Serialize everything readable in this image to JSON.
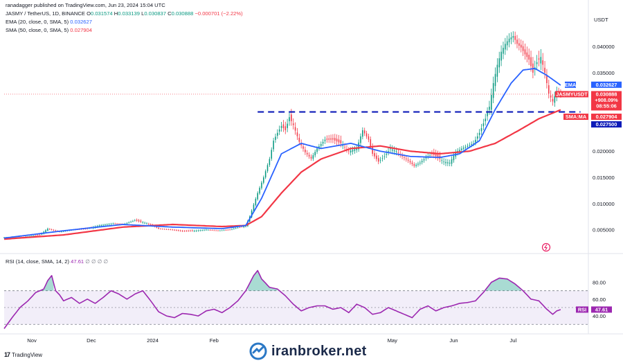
{
  "header": {
    "publisher": "ranadagger published on TradingView.com, Jun 23, 2024 15:04 UTC",
    "symbol_line": "JASMY / TetherUS, 1D, BINANCE",
    "o_label": "O",
    "o_value": "0.031574",
    "h_label": "H",
    "h_value": "0.033139",
    "l_label": "L",
    "l_value": "0.030837",
    "c_label": "C",
    "c_value": "0.030888",
    "change": "−0.000701 (−2.22%)",
    "ema_label": "EMA (20, close, 0, SMA, 5)",
    "ema_value": "0.032627",
    "sma_label": "SMA (50, close, 0, SMA, 5)",
    "sma_value": "0.027904"
  },
  "rsi_header": {
    "label": "RSI (14, close, SMA, 14, 2)",
    "value": "47.61",
    "extras": "∅ ∅ ∅ ∅"
  },
  "currency": "USDT",
  "tags": {
    "ema": {
      "label": "EMA",
      "value": "0.032627"
    },
    "symbol": {
      "label": "JASMYUSDT",
      "value": "0.030888",
      "change": "+908.09%",
      "countdown": "08:55:06"
    },
    "sma": {
      "label": "SMA:MA",
      "value": "0.027904"
    },
    "level": {
      "value": "0.027500"
    },
    "rsi": {
      "label": "RSI",
      "value": "47.61"
    }
  },
  "branding": {
    "tradingview": "TradingView",
    "watermark": "iranbroker.net"
  },
  "colors": {
    "up": "#089981",
    "down": "#f23645",
    "ema": "#2962ff",
    "sma": "#f23645",
    "rsi": "#9c27b0",
    "level_line": "#0d1bb8",
    "tag_dark": "#131722"
  },
  "chart_data": [
    {
      "type": "candlestick",
      "symbol": "JASMY / TetherUS",
      "timeframe": "1D",
      "y_axis": {
        "ticks": [
          0.005,
          0.01,
          0.015,
          0.02,
          0.035,
          0.04
        ],
        "tick_labels": [
          "0.005000",
          "0.010000",
          "0.015000",
          "0.020000",
          "0.035000",
          "0.040000"
        ],
        "ylim": [
          0.0015,
          0.0465
        ]
      },
      "x_axis": {
        "tick_labels": [
          "Nov",
          "Dec",
          "2024",
          "Feb",
          "May",
          "Jun",
          "Jul"
        ]
      },
      "close_series_approx": [
        [
          0,
          0.0035
        ],
        [
          10,
          0.0036
        ],
        [
          18,
          0.004
        ],
        [
          22,
          0.0052
        ],
        [
          28,
          0.0046
        ],
        [
          35,
          0.005
        ],
        [
          42,
          0.0052
        ],
        [
          48,
          0.0058
        ],
        [
          55,
          0.0062
        ],
        [
          60,
          0.006
        ],
        [
          66,
          0.0068
        ],
        [
          70,
          0.0064
        ],
        [
          74,
          0.006
        ],
        [
          78,
          0.0052
        ],
        [
          84,
          0.005
        ],
        [
          90,
          0.0047
        ],
        [
          96,
          0.0048
        ],
        [
          102,
          0.005
        ],
        [
          108,
          0.0048
        ],
        [
          114,
          0.005
        ],
        [
          118,
          0.0054
        ],
        [
          122,
          0.0058
        ],
        [
          124,
          0.0075
        ],
        [
          126,
          0.0098
        ],
        [
          128,
          0.012
        ],
        [
          131,
          0.015
        ],
        [
          134,
          0.0185
        ],
        [
          136,
          0.022
        ],
        [
          138,
          0.0235
        ],
        [
          140,
          0.0248
        ],
        [
          142,
          0.024
        ],
        [
          144,
          0.0265
        ],
        [
          146,
          0.025
        ],
        [
          149,
          0.0218
        ],
        [
          152,
          0.0198
        ],
        [
          155,
          0.0186
        ],
        [
          158,
          0.0205
        ],
        [
          162,
          0.0222
        ],
        [
          166,
          0.0222
        ],
        [
          170,
          0.0215
        ],
        [
          174,
          0.02
        ],
        [
          178,
          0.0205
        ],
        [
          181,
          0.024
        ],
        [
          184,
          0.0222
        ],
        [
          186,
          0.0195
        ],
        [
          189,
          0.018
        ],
        [
          192,
          0.019
        ],
        [
          195,
          0.0205
        ],
        [
          198,
          0.02
        ],
        [
          201,
          0.019
        ],
        [
          204,
          0.0182
        ],
        [
          207,
          0.0172
        ],
        [
          210,
          0.0178
        ],
        [
          213,
          0.0188
        ],
        [
          216,
          0.0195
        ],
        [
          219,
          0.0188
        ],
        [
          222,
          0.018
        ],
        [
          225,
          0.0178
        ],
        [
          228,
          0.0198
        ],
        [
          231,
          0.0205
        ],
        [
          234,
          0.021
        ],
        [
          237,
          0.0215
        ],
        [
          240,
          0.0235
        ],
        [
          243,
          0.0262
        ],
        [
          245,
          0.0285
        ],
        [
          247,
          0.033
        ],
        [
          249,
          0.0365
        ],
        [
          251,
          0.039
        ],
        [
          253,
          0.0405
        ],
        [
          255,
          0.0415
        ],
        [
          257,
          0.042
        ],
        [
          259,
          0.0405
        ],
        [
          261,
          0.0398
        ],
        [
          263,
          0.0385
        ],
        [
          265,
          0.0375
        ],
        [
          267,
          0.035
        ],
        [
          269,
          0.037
        ],
        [
          271,
          0.038
        ],
        [
          273,
          0.035
        ],
        [
          275,
          0.031
        ],
        [
          277,
          0.0295
        ],
        [
          279,
          0.0315
        ],
        [
          281,
          0.0309
        ]
      ],
      "ema20": [
        [
          0,
          0.0034
        ],
        [
          30,
          0.0048
        ],
        [
          60,
          0.006
        ],
        [
          85,
          0.0055
        ],
        [
          110,
          0.0052
        ],
        [
          122,
          0.0058
        ],
        [
          130,
          0.011
        ],
        [
          140,
          0.0195
        ],
        [
          150,
          0.0215
        ],
        [
          160,
          0.0205
        ],
        [
          175,
          0.0215
        ],
        [
          190,
          0.02
        ],
        [
          205,
          0.019
        ],
        [
          220,
          0.0188
        ],
        [
          230,
          0.0195
        ],
        [
          240,
          0.022
        ],
        [
          248,
          0.028
        ],
        [
          256,
          0.033
        ],
        [
          262,
          0.0355
        ],
        [
          268,
          0.0358
        ],
        [
          274,
          0.0345
        ],
        [
          281,
          0.0326
        ]
      ],
      "sma50": [
        [
          0,
          0.0032
        ],
        [
          30,
          0.004
        ],
        [
          60,
          0.0055
        ],
        [
          85,
          0.006
        ],
        [
          110,
          0.0056
        ],
        [
          122,
          0.0058
        ],
        [
          130,
          0.0075
        ],
        [
          140,
          0.012
        ],
        [
          150,
          0.016
        ],
        [
          160,
          0.0185
        ],
        [
          175,
          0.0205
        ],
        [
          190,
          0.021
        ],
        [
          205,
          0.02
        ],
        [
          220,
          0.0195
        ],
        [
          235,
          0.02
        ],
        [
          248,
          0.0215
        ],
        [
          260,
          0.024
        ],
        [
          270,
          0.0262
        ],
        [
          281,
          0.0279
        ]
      ],
      "horizontal_level": 0.0275
    },
    {
      "type": "line",
      "name": "RSI (14, close, SMA, 14, 2)",
      "y_axis": {
        "tick_labels": [
          "40.00",
          "60.00",
          "80.00"
        ],
        "ylim": [
          22,
          101
        ],
        "bands": [
          30,
          70
        ]
      },
      "rsi_series_approx": [
        [
          0,
          25
        ],
        [
          4,
          38
        ],
        [
          8,
          50
        ],
        [
          12,
          58
        ],
        [
          16,
          68
        ],
        [
          20,
          72
        ],
        [
          22,
          82
        ],
        [
          24,
          88
        ],
        [
          26,
          70
        ],
        [
          28,
          65
        ],
        [
          30,
          58
        ],
        [
          34,
          62
        ],
        [
          38,
          55
        ],
        [
          42,
          60
        ],
        [
          46,
          55
        ],
        [
          50,
          62
        ],
        [
          54,
          70
        ],
        [
          58,
          66
        ],
        [
          62,
          60
        ],
        [
          66,
          66
        ],
        [
          70,
          70
        ],
        [
          74,
          58
        ],
        [
          78,
          45
        ],
        [
          82,
          40
        ],
        [
          86,
          38
        ],
        [
          90,
          43
        ],
        [
          94,
          42
        ],
        [
          98,
          40
        ],
        [
          102,
          46
        ],
        [
          106,
          48
        ],
        [
          110,
          44
        ],
        [
          114,
          50
        ],
        [
          118,
          58
        ],
        [
          122,
          70
        ],
        [
          126,
          88
        ],
        [
          128,
          94
        ],
        [
          130,
          84
        ],
        [
          134,
          74
        ],
        [
          138,
          72
        ],
        [
          142,
          64
        ],
        [
          146,
          54
        ],
        [
          150,
          46
        ],
        [
          154,
          50
        ],
        [
          158,
          52
        ],
        [
          162,
          52
        ],
        [
          166,
          48
        ],
        [
          170,
          50
        ],
        [
          174,
          44
        ],
        [
          178,
          54
        ],
        [
          182,
          50
        ],
        [
          186,
          42
        ],
        [
          190,
          44
        ],
        [
          194,
          50
        ],
        [
          198,
          46
        ],
        [
          202,
          42
        ],
        [
          206,
          38
        ],
        [
          210,
          48
        ],
        [
          214,
          52
        ],
        [
          218,
          46
        ],
        [
          222,
          50
        ],
        [
          226,
          52
        ],
        [
          230,
          55
        ],
        [
          234,
          56
        ],
        [
          238,
          58
        ],
        [
          242,
          68
        ],
        [
          246,
          80
        ],
        [
          250,
          85
        ],
        [
          254,
          84
        ],
        [
          258,
          78
        ],
        [
          262,
          70
        ],
        [
          266,
          60
        ],
        [
          270,
          58
        ],
        [
          274,
          48
        ],
        [
          277,
          42
        ],
        [
          279,
          46
        ],
        [
          281,
          47.6
        ]
      ]
    }
  ]
}
